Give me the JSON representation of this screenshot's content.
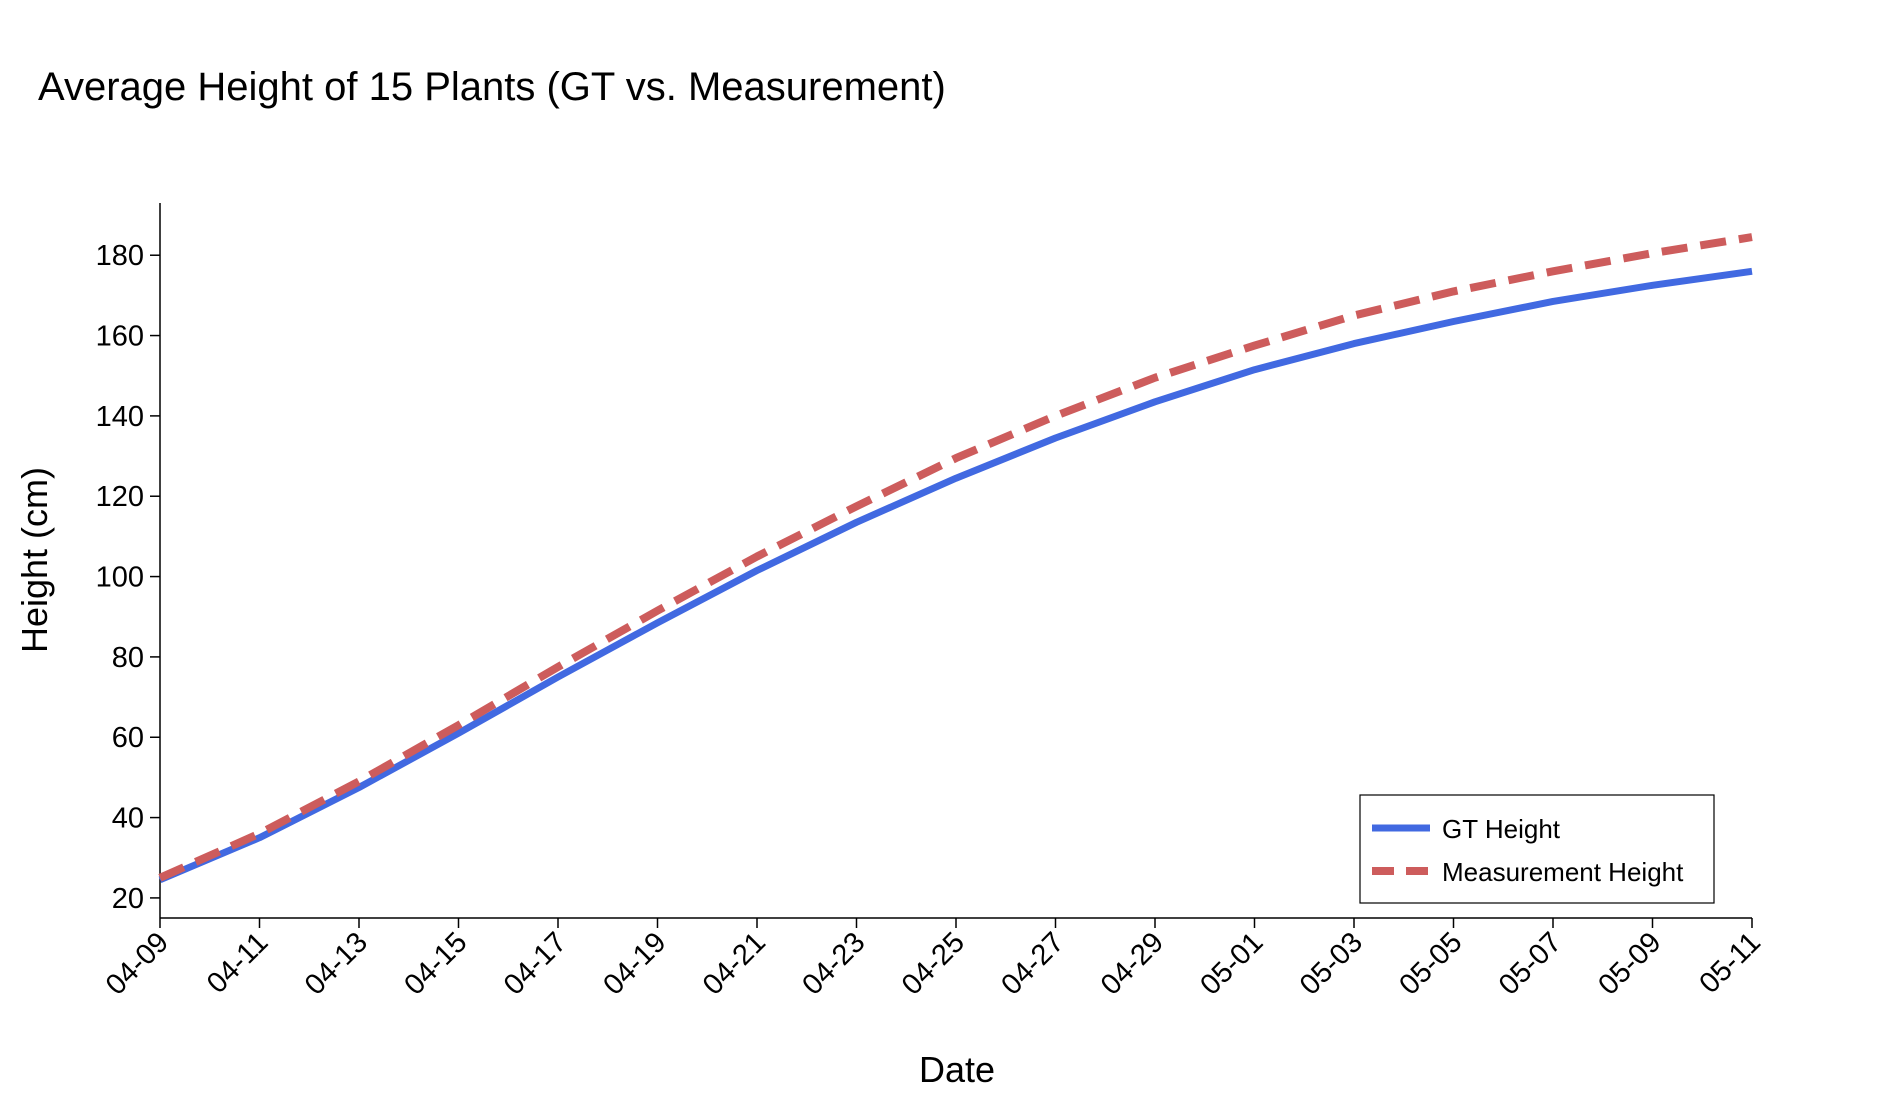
{
  "chart_data": {
    "type": "line",
    "title": "Average Height of 15 Plants (GT vs. Measurement)",
    "xlabel": "Date",
    "ylabel": "Height (cm)",
    "x": [
      "04-09",
      "04-11",
      "04-13",
      "04-15",
      "04-17",
      "04-19",
      "04-21",
      "04-23",
      "04-25",
      "04-27",
      "04-29",
      "05-01",
      "05-03",
      "05-05",
      "05-07",
      "05-09",
      "05-11"
    ],
    "xtick_labels": [
      "04-09",
      "04-11",
      "04-13",
      "04-15",
      "04-17",
      "04-19",
      "04-21",
      "04-23",
      "04-25",
      "04-27",
      "04-29",
      "05-01",
      "05-03",
      "05-05",
      "05-07",
      "05-09",
      "05-11"
    ],
    "ylim": [
      15,
      193
    ],
    "yticks": [
      20,
      40,
      60,
      80,
      100,
      120,
      140,
      160,
      180
    ],
    "grid": false,
    "legend_position": "bottom-right",
    "series": [
      {
        "name": "GT Height",
        "style": "solid",
        "color": "#4169e1",
        "values": [
          24.5,
          35,
          47.5,
          61,
          75,
          88.5,
          101.5,
          113.5,
          124.5,
          134.5,
          143.5,
          151.5,
          158,
          163.5,
          168.5,
          172.5,
          176
        ]
      },
      {
        "name": "Measurement Height",
        "style": "dashed",
        "color": "#cd5c5c",
        "values": [
          25,
          36,
          49,
          63,
          77.5,
          91.5,
          105,
          117.5,
          129.5,
          140,
          149.5,
          157.5,
          165,
          171,
          176,
          180.5,
          184.5
        ]
      }
    ]
  }
}
